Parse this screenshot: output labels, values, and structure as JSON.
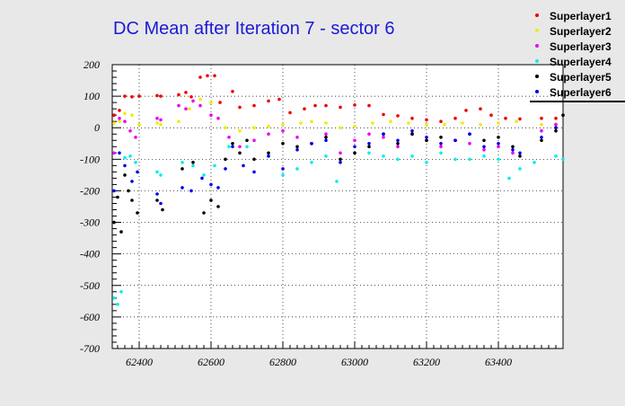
{
  "chart_data": {
    "type": "scatter",
    "title": "DC Mean after Iteration 7 - sector 6",
    "xlabel": "",
    "ylabel": "",
    "xlim": [
      62325,
      63580
    ],
    "ylim": [
      -700,
      200
    ],
    "x_ticks": [
      62400,
      62600,
      62800,
      63000,
      63200,
      63400
    ],
    "y_ticks": [
      200,
      100,
      0,
      -100,
      -200,
      -300,
      -400,
      -500,
      -600,
      -700
    ],
    "grid": true,
    "legend_position": "top-right",
    "series": [
      {
        "name": "Superlayer1",
        "color": "#ee0000",
        "x": [
          62330,
          62345,
          62360,
          62380,
          62400,
          62450,
          62460,
          62510,
          62530,
          62545,
          62570,
          62590,
          62610,
          62625,
          62660,
          62680,
          62720,
          62760,
          62790,
          62820,
          62860,
          62890,
          62920,
          62960,
          63000,
          63040,
          63080,
          63120,
          63160,
          63200,
          63240,
          63280,
          63310,
          63350,
          63380,
          63420,
          63460,
          63520,
          63560
        ],
        "y": [
          40,
          55,
          100,
          98,
          100,
          102,
          100,
          105,
          112,
          98,
          160,
          165,
          165,
          80,
          115,
          65,
          70,
          85,
          90,
          48,
          60,
          70,
          70,
          65,
          72,
          70,
          42,
          38,
          30,
          25,
          20,
          30,
          55,
          60,
          40,
          30,
          28,
          30,
          30
        ]
      },
      {
        "name": "Superlayer2",
        "color": "#eeee00",
        "x": [
          62330,
          62345,
          62360,
          62380,
          62400,
          62450,
          62460,
          62510,
          62540,
          62570,
          62600,
          62640,
          62680,
          62720,
          62760,
          62800,
          62850,
          62880,
          62920,
          62960,
          63000,
          63050,
          63100,
          63150,
          63200,
          63250,
          63300,
          63350,
          63400,
          63450,
          63520,
          63560
        ],
        "y": [
          15,
          20,
          45,
          40,
          10,
          15,
          10,
          20,
          60,
          90,
          80,
          0,
          -10,
          0,
          5,
          10,
          15,
          20,
          15,
          0,
          5,
          15,
          20,
          15,
          10,
          10,
          15,
          10,
          15,
          20,
          10,
          12
        ]
      },
      {
        "name": "Superlayer3",
        "color": "#ee00ee",
        "x": [
          62330,
          62345,
          62360,
          62375,
          62390,
          62450,
          62460,
          62510,
          62530,
          62550,
          62570,
          62600,
          62620,
          62650,
          62680,
          62720,
          62760,
          62800,
          62840,
          62880,
          62920,
          62960,
          63000,
          63040,
          63080,
          63120,
          63160,
          63200,
          63240,
          63280,
          63320,
          63360,
          63400,
          63440,
          63520,
          63560
        ],
        "y": [
          -80,
          30,
          20,
          -10,
          -30,
          30,
          25,
          70,
          60,
          85,
          70,
          40,
          30,
          -30,
          -60,
          -40,
          -20,
          -10,
          -30,
          -50,
          -20,
          -80,
          -40,
          -20,
          -30,
          -60,
          -20,
          -40,
          -60,
          -40,
          -50,
          -70,
          -60,
          -80,
          -10,
          10
        ]
      },
      {
        "name": "Superlayer4",
        "color": "#00eeee",
        "x": [
          62330,
          62340,
          62350,
          62360,
          62375,
          62390,
          62450,
          62460,
          62520,
          62550,
          62580,
          62610,
          62650,
          62700,
          62760,
          62800,
          62840,
          62880,
          62920,
          62950,
          63000,
          63040,
          63080,
          63120,
          63160,
          63200,
          63240,
          63280,
          63320,
          63360,
          63400,
          63430,
          63460,
          63500,
          63560,
          63580
        ],
        "y": [
          -540,
          -560,
          -520,
          -95,
          -90,
          -110,
          -140,
          -150,
          -110,
          -120,
          -150,
          -120,
          -60,
          -60,
          -90,
          -150,
          -130,
          -110,
          -90,
          -170,
          -80,
          -80,
          -90,
          -100,
          -90,
          -110,
          -80,
          -100,
          -100,
          -90,
          -100,
          -160,
          -130,
          -110,
          -90,
          -100
        ]
      },
      {
        "name": "Superlayer5",
        "color": "#000000",
        "x": [
          62330,
          62340,
          62350,
          62360,
          62370,
          62380,
          62395,
          62450,
          62465,
          62520,
          62550,
          62580,
          62600,
          62620,
          62640,
          62660,
          62680,
          62700,
          62720,
          62760,
          62800,
          62840,
          62880,
          62920,
          62960,
          63000,
          63040,
          63080,
          63120,
          63160,
          63200,
          63240,
          63280,
          63320,
          63360,
          63400,
          63440,
          63460,
          63520,
          63560,
          63580
        ],
        "y": [
          -300,
          -220,
          -330,
          -150,
          -200,
          -230,
          -270,
          -230,
          -260,
          -130,
          -110,
          -270,
          -230,
          -250,
          -100,
          -50,
          -80,
          -40,
          -100,
          -80,
          -50,
          -60,
          -50,
          -30,
          -100,
          -80,
          -60,
          -20,
          -50,
          -20,
          -40,
          -30,
          -40,
          -20,
          -40,
          -30,
          -60,
          -90,
          -40,
          -10,
          40
        ]
      },
      {
        "name": "Superlayer6",
        "color": "#0000ee",
        "x": [
          62330,
          62345,
          62360,
          62380,
          62395,
          62450,
          62460,
          62520,
          62545,
          62575,
          62600,
          62620,
          62640,
          62660,
          62690,
          62720,
          62760,
          62800,
          62840,
          62880,
          62920,
          62960,
          63000,
          63040,
          63080,
          63120,
          63160,
          63200,
          63240,
          63280,
          63320,
          63360,
          63400,
          63440,
          63460,
          63520,
          63560
        ],
        "y": [
          -200,
          -80,
          -120,
          -170,
          -140,
          -210,
          -240,
          -190,
          -200,
          -160,
          -180,
          -190,
          -130,
          -60,
          -120,
          -140,
          -90,
          -130,
          -70,
          -50,
          -40,
          -110,
          -60,
          -50,
          -20,
          -40,
          -10,
          -30,
          -50,
          -40,
          -20,
          -60,
          -50,
          -70,
          -80,
          -30,
          0
        ]
      }
    ]
  }
}
